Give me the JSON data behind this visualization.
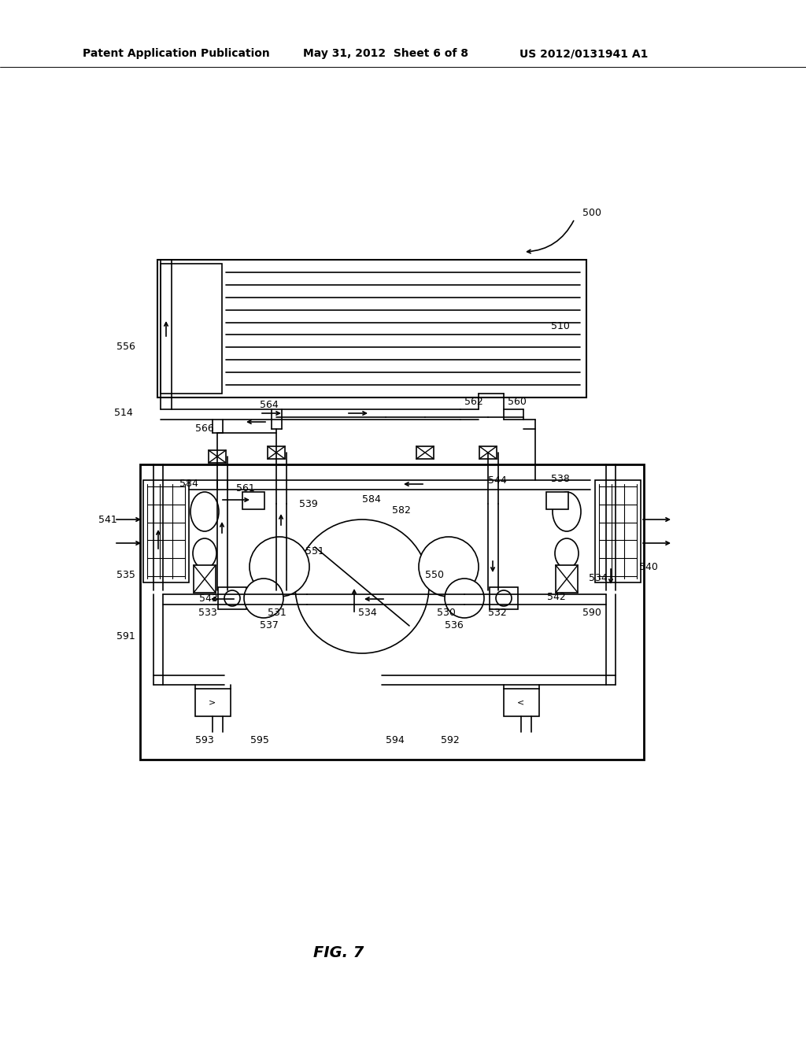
{
  "title_left": "Patent Application Publication",
  "title_mid": "May 31, 2012  Sheet 6 of 8",
  "title_right": "US 2012/0131941 A1",
  "fig_label": "FIG. 7",
  "bg_color": "#ffffff"
}
